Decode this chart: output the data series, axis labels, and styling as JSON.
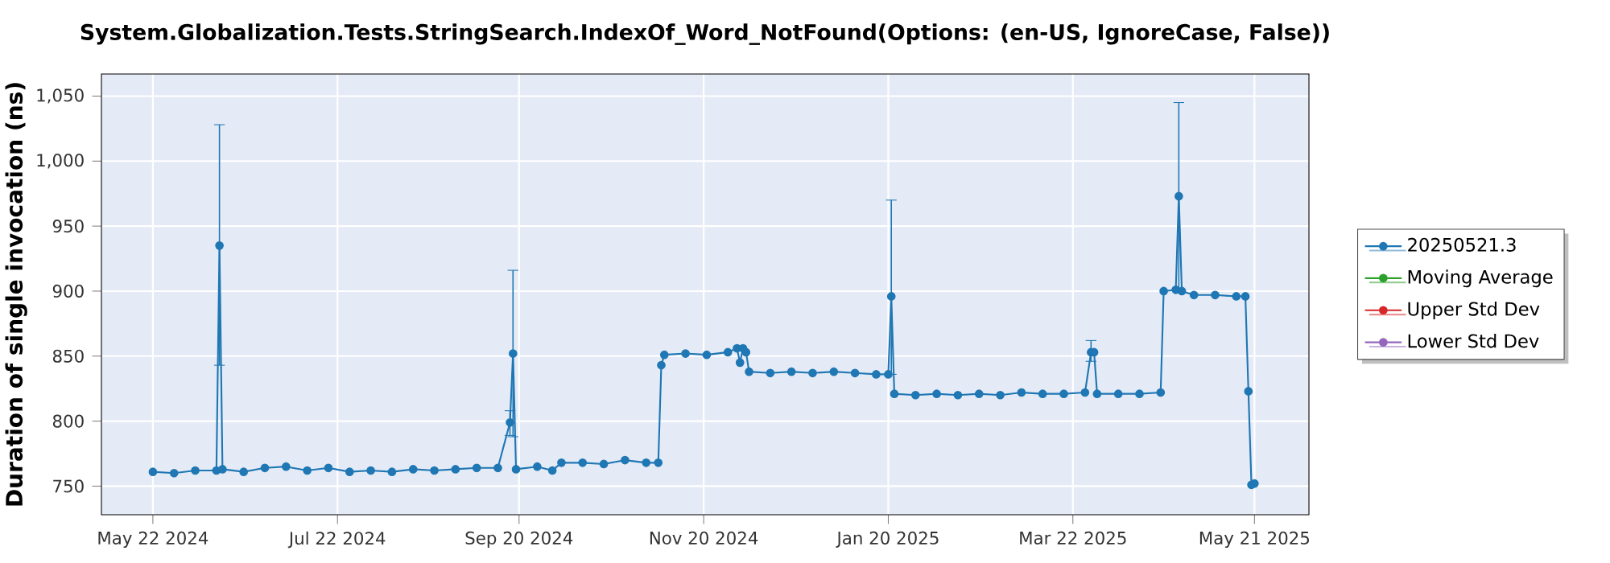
{
  "chart_data": {
    "type": "line",
    "title": "System.Globalization.Tests.StringSearch.IndexOf_Word_NotFound(Options: (en-US, IgnoreCase, False))",
    "ylabel": "Duration of single invocation (ns)",
    "x": [
      "2024-05-22",
      "2024-05-29",
      "2024-06-05",
      "2024-06-12",
      "2024-06-13",
      "2024-06-14",
      "2024-06-21",
      "2024-06-28",
      "2024-07-05",
      "2024-07-12",
      "2024-07-19",
      "2024-07-26",
      "2024-08-02",
      "2024-08-09",
      "2024-08-16",
      "2024-08-23",
      "2024-08-30",
      "2024-09-06",
      "2024-09-13",
      "2024-09-17",
      "2024-09-18",
      "2024-09-19",
      "2024-09-26",
      "2024-10-01",
      "2024-10-04",
      "2024-10-11",
      "2024-10-18",
      "2024-10-25",
      "2024-11-01",
      "2024-11-05",
      "2024-11-06",
      "2024-11-07",
      "2024-11-14",
      "2024-11-21",
      "2024-11-28",
      "2024-12-01",
      "2024-12-02",
      "2024-12-03",
      "2024-12-04",
      "2024-12-05",
      "2024-12-12",
      "2024-12-19",
      "2024-12-26",
      "2025-01-02",
      "2025-01-09",
      "2025-01-16",
      "2025-01-20",
      "2025-01-21",
      "2025-01-22",
      "2025-01-29",
      "2025-02-05",
      "2025-02-12",
      "2025-02-19",
      "2025-02-26",
      "2025-03-05",
      "2025-03-12",
      "2025-03-19",
      "2025-03-26",
      "2025-03-28",
      "2025-03-29",
      "2025-03-30",
      "2025-04-06",
      "2025-04-13",
      "2025-04-20",
      "2025-04-21",
      "2025-04-25",
      "2025-04-26",
      "2025-04-27",
      "2025-05-01",
      "2025-05-08",
      "2025-05-15",
      "2025-05-18",
      "2025-05-19",
      "2025-05-20",
      "2025-05-21"
    ],
    "series": [
      {
        "name": "20250521.3",
        "color": "#1f77b4",
        "values": [
          761,
          760,
          762,
          762,
          935,
          763,
          761,
          764,
          765,
          762,
          764,
          761,
          762,
          761,
          763,
          762,
          763,
          764,
          764,
          799,
          852,
          763,
          765,
          762,
          768,
          768,
          767,
          770,
          768,
          768,
          843,
          851,
          852,
          851,
          853,
          856,
          845,
          856,
          853,
          838,
          837,
          838,
          837,
          838,
          837,
          836,
          836,
          896,
          821,
          820,
          821,
          820,
          821,
          820,
          822,
          821,
          821,
          822,
          853,
          853,
          821,
          821,
          821,
          822,
          900,
          901,
          973,
          900,
          897,
          897,
          896,
          896,
          823,
          751,
          752
        ],
        "errors": [
          null,
          null,
          null,
          null,
          [
            843,
            1028
          ],
          null,
          null,
          null,
          null,
          null,
          null,
          null,
          null,
          null,
          null,
          null,
          null,
          null,
          null,
          [
            789,
            808
          ],
          [
            788,
            916
          ],
          null,
          null,
          null,
          null,
          null,
          null,
          null,
          null,
          null,
          null,
          null,
          null,
          null,
          null,
          null,
          null,
          null,
          null,
          null,
          null,
          null,
          null,
          null,
          null,
          null,
          null,
          [
            836,
            970
          ],
          null,
          null,
          null,
          null,
          null,
          null,
          null,
          null,
          null,
          null,
          [
            846,
            862
          ],
          null,
          null,
          null,
          null,
          null,
          null,
          null,
          [
            900,
            1045
          ],
          null,
          null,
          null,
          null,
          null,
          null,
          null,
          null
        ]
      },
      {
        "name": "Moving Average",
        "color": "#2ca02c",
        "values": [
          null,
          null,
          null,
          null,
          null,
          null,
          null,
          null,
          null,
          null,
          null,
          null,
          null,
          null,
          null,
          null,
          null,
          null,
          null,
          null,
          null,
          null,
          null,
          null,
          null,
          null,
          null,
          null,
          null,
          null,
          null,
          null,
          null,
          null,
          null,
          null,
          null,
          null,
          null,
          null,
          null,
          null,
          null,
          null,
          null,
          null,
          null,
          null,
          null,
          null,
          null,
          null,
          null,
          null,
          null,
          null,
          null,
          null,
          null,
          null,
          null,
          null,
          null,
          null,
          null,
          null,
          null,
          null,
          null,
          null,
          null,
          null,
          null,
          null,
          null
        ]
      },
      {
        "name": "Upper Std Dev",
        "color": "#d62728",
        "values": [
          null,
          null,
          null,
          null,
          null,
          null,
          null,
          null,
          null,
          null,
          null,
          null,
          null,
          null,
          null,
          null,
          null,
          null,
          null,
          null,
          null,
          null,
          null,
          null,
          null,
          null,
          null,
          null,
          null,
          null,
          null,
          null,
          null,
          null,
          null,
          null,
          null,
          null,
          null,
          null,
          null,
          null,
          null,
          null,
          null,
          null,
          null,
          null,
          null,
          null,
          null,
          null,
          null,
          null,
          null,
          null,
          null,
          null,
          null,
          null,
          null,
          null,
          null,
          null,
          null,
          null,
          null,
          null,
          null,
          null,
          null,
          null,
          null,
          null,
          null
        ]
      },
      {
        "name": "Lower Std Dev",
        "color": "#9467bd",
        "values": [
          null,
          null,
          null,
          null,
          null,
          null,
          null,
          null,
          null,
          null,
          null,
          null,
          null,
          null,
          null,
          null,
          null,
          null,
          null,
          null,
          null,
          null,
          null,
          null,
          null,
          null,
          null,
          null,
          null,
          null,
          null,
          null,
          null,
          null,
          null,
          null,
          null,
          null,
          null,
          null,
          null,
          null,
          null,
          null,
          null,
          null,
          null,
          null,
          null,
          null,
          null,
          null,
          null,
          null,
          null,
          null,
          null,
          null,
          null,
          null,
          null,
          null,
          null,
          null,
          null,
          null,
          null,
          null,
          null,
          null,
          null,
          null,
          null,
          null,
          null
        ]
      }
    ],
    "xlim": [
      "2024-05-05",
      "2025-06-08"
    ],
    "xticks": [
      {
        "value": "2024-05-22",
        "label": "May 22 2024"
      },
      {
        "value": "2024-07-22",
        "label": "Jul 22 2024"
      },
      {
        "value": "2024-09-20",
        "label": "Sep 20 2024"
      },
      {
        "value": "2024-11-20",
        "label": "Nov 20 2024"
      },
      {
        "value": "2025-01-20",
        "label": "Jan 20 2025"
      },
      {
        "value": "2025-03-22",
        "label": "Mar 22 2025"
      },
      {
        "value": "2025-05-21",
        "label": "May 21 2025"
      }
    ],
    "ylim": [
      728,
      1067
    ],
    "yticks": [
      750,
      800,
      850,
      900,
      950,
      {
        "value": 1000,
        "label": "1,000"
      },
      {
        "value": 1050,
        "label": "1,050"
      }
    ],
    "grid": true,
    "legend": "right",
    "marker": "circle",
    "line_style": "solid"
  }
}
